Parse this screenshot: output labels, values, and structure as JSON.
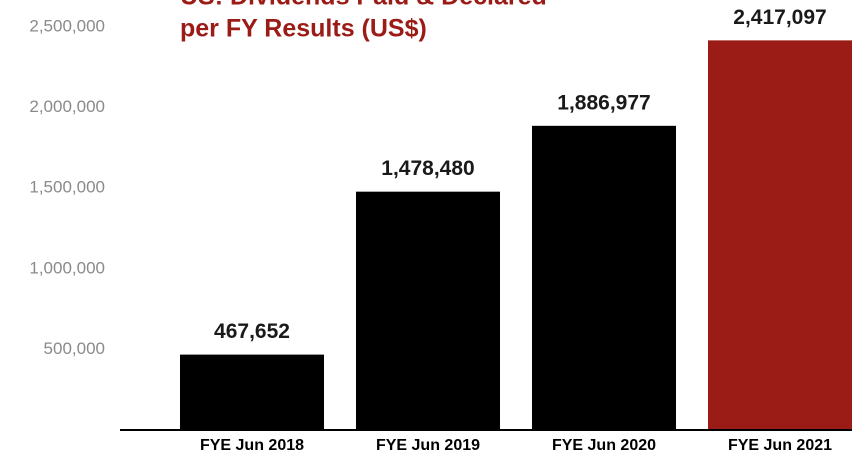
{
  "chart_data": {
    "type": "bar",
    "title": [
      "US: Dividends Paid & Declared",
      "per FY Results (US$)"
    ],
    "categories": [
      "FYE Jun 2018",
      "FYE Jun 2019",
      "FYE Jun 2020",
      "FYE Jun 2021"
    ],
    "values": [
      467652,
      1478480,
      1886977,
      2417097
    ],
    "value_labels": [
      "467,652",
      "1,478,480",
      "1,886,977",
      "2,417,097"
    ],
    "colors": [
      "#000000",
      "#000000",
      "#000000",
      "#9b1b17"
    ],
    "ylim": [
      0,
      2500000
    ],
    "yticks": [
      {
        "value": 500000,
        "label": "500,000"
      },
      {
        "value": 1000000,
        "label": "1,000,000"
      },
      {
        "value": 1500000,
        "label": "1,500,000"
      },
      {
        "value": 2000000,
        "label": "2,000,000"
      },
      {
        "value": 2500000,
        "label": "2,500,000"
      }
    ],
    "grid": false
  }
}
